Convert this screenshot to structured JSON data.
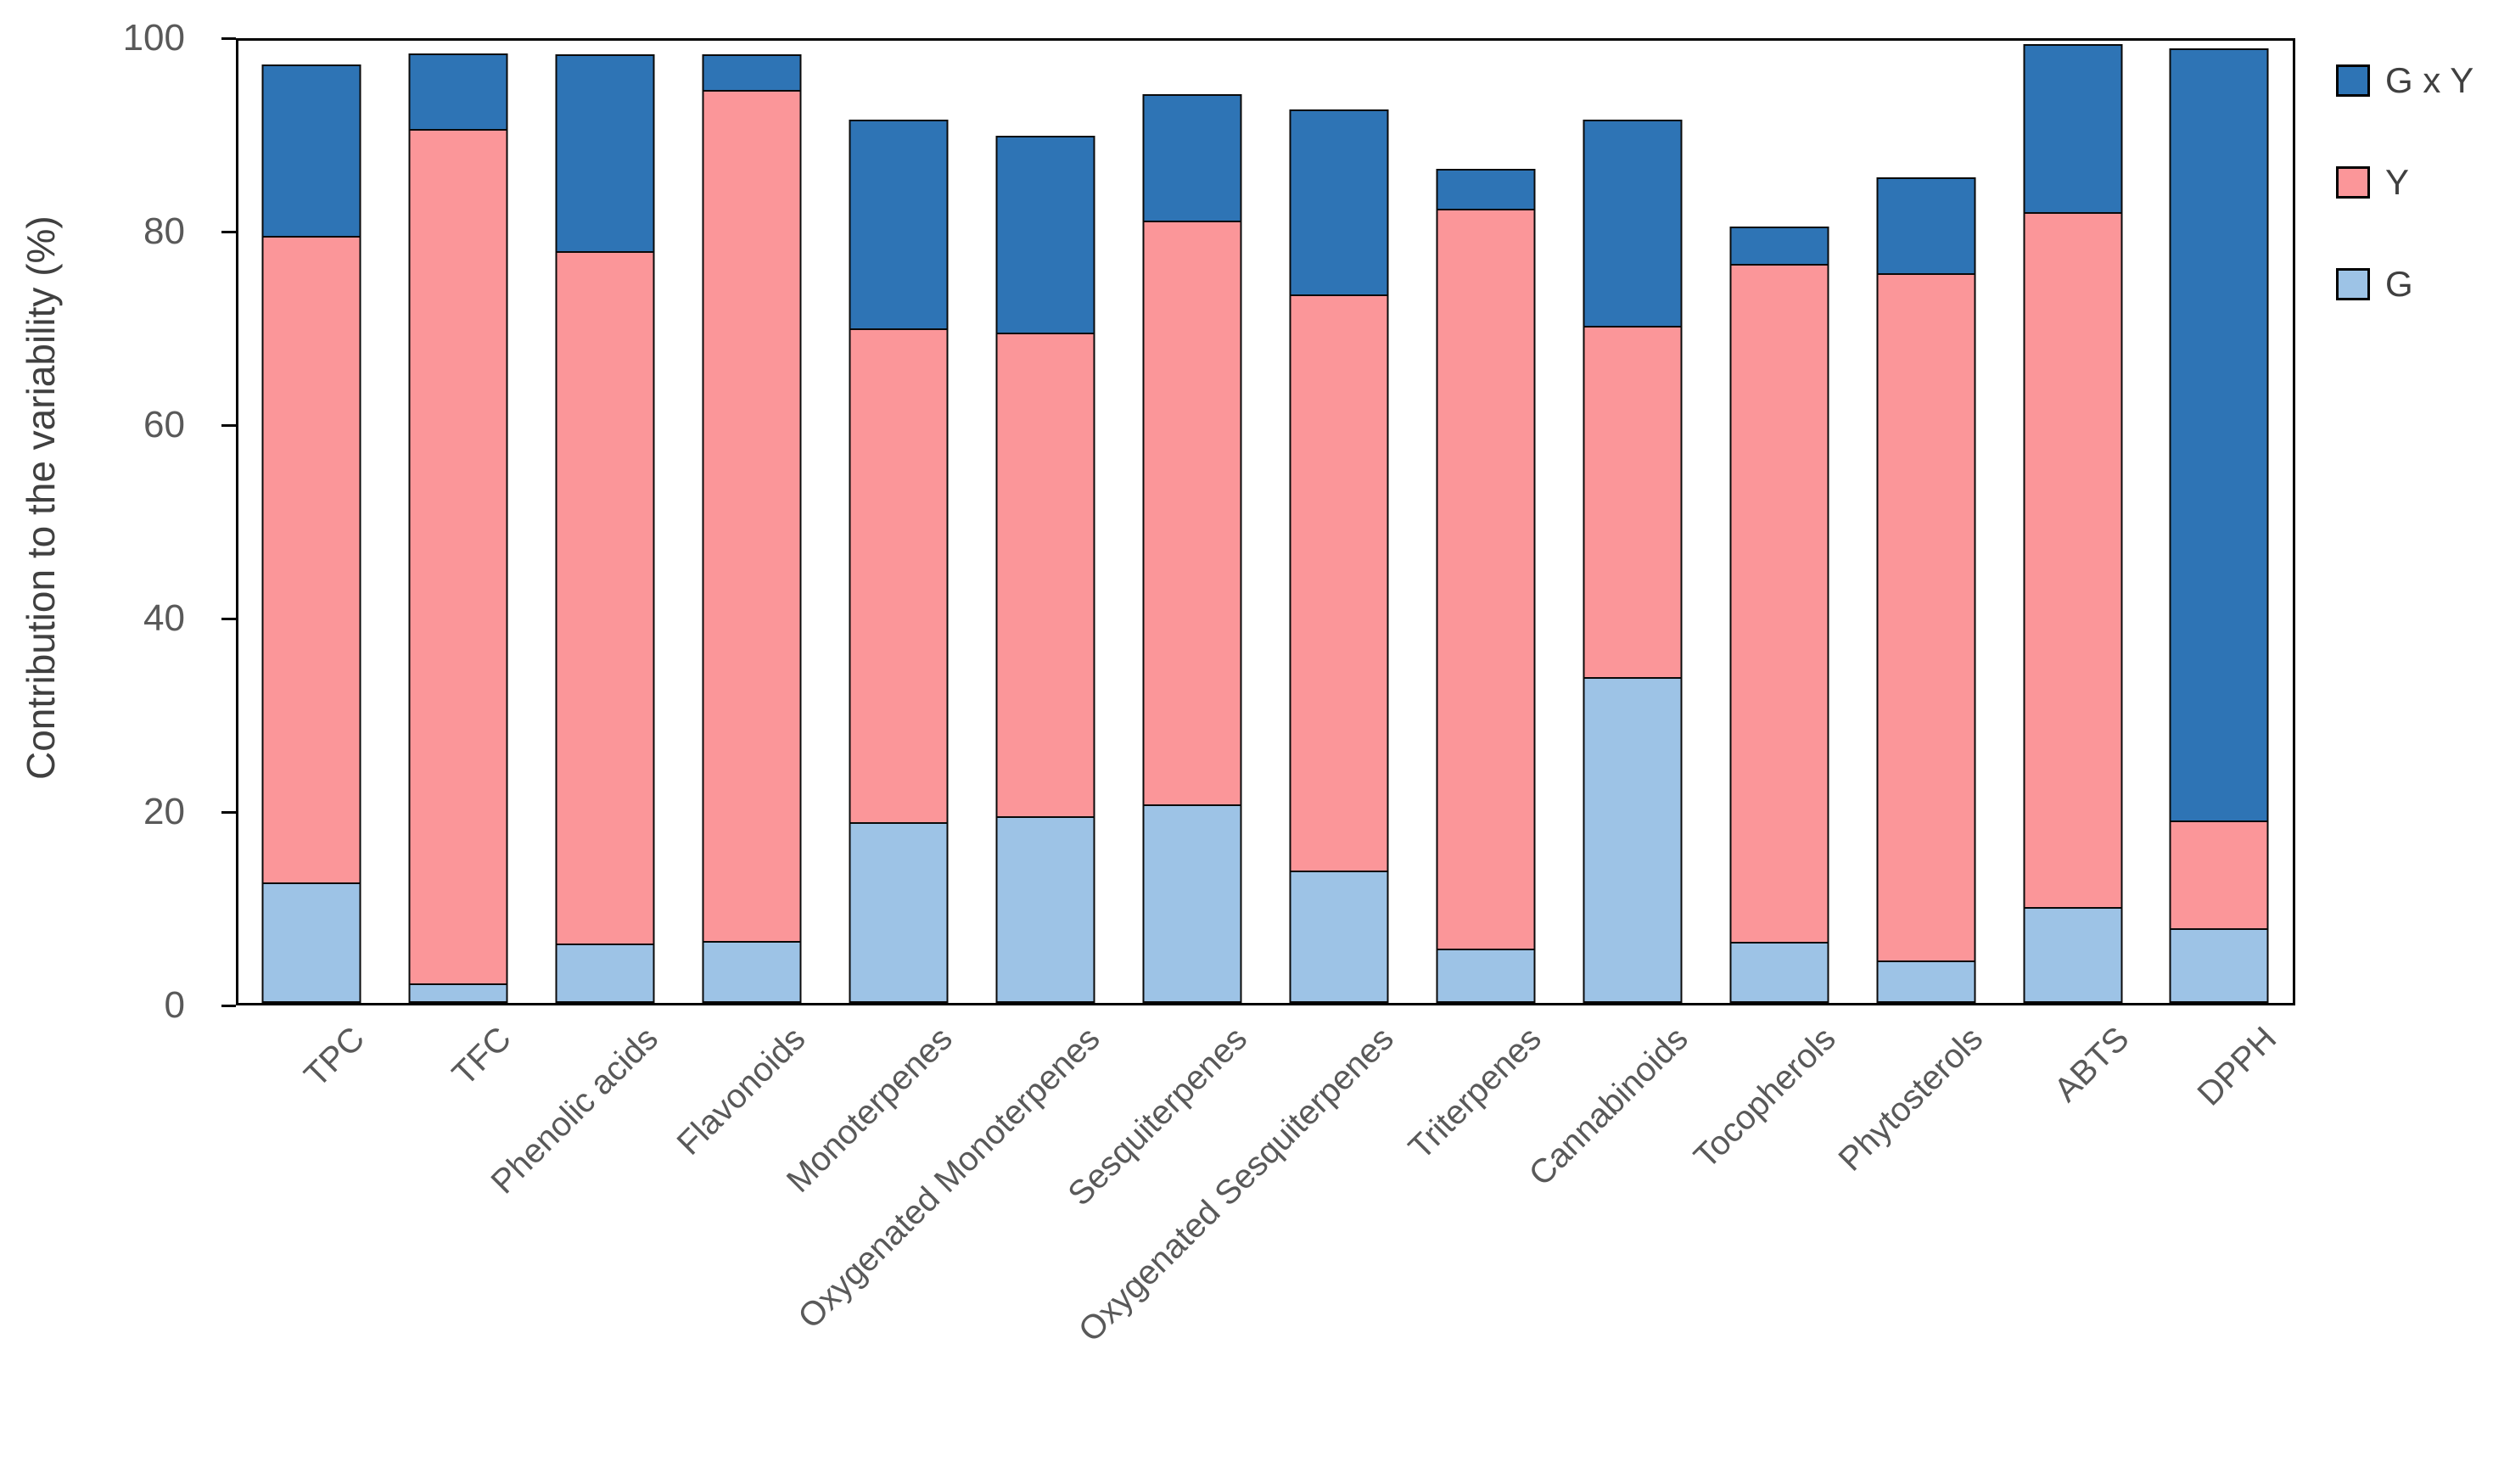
{
  "y_axis": {
    "title": "Contribution to the variability (%)",
    "ticks": [
      0,
      20,
      40,
      60,
      80,
      100
    ],
    "min": 0,
    "max": 100
  },
  "legend": [
    {
      "label": "G x Y",
      "color": "#2E74B5"
    },
    {
      "label": "Y",
      "color": "#FB9699"
    },
    {
      "label": "G",
      "color": "#9DC3E6"
    }
  ],
  "colors": {
    "gxy_blue": "#2E74B5",
    "y_pink": "#FB9699",
    "g_lightblue": "#9DC3E6",
    "bar_border": "#0a0a0a",
    "axis_black": "#000000",
    "tick_text": "#595959",
    "axis_title_text": "#404040"
  },
  "chart_data": {
    "type": "bar",
    "stacked": true,
    "title": "",
    "xlabel": "",
    "ylabel": "Contribution to the variability (%)",
    "ylim": [
      0,
      100
    ],
    "grid": false,
    "legend_position": "right",
    "categories": [
      "TPC",
      "TFC",
      "Phenolic acids",
      "Flavonoids",
      "Monoterpenes",
      "Oxygenated Monoterpenes",
      "Sesquiterpenes",
      "Oxygenated Sesquiterpenes",
      "Triterpenes",
      "Cannabinoids",
      "Tocopherols",
      "Phytosterols",
      "ABTS",
      "DPPH"
    ],
    "series": [
      {
        "name": "G",
        "color": "#9DC3E6",
        "values": [
          12.5,
          2.0,
          6.1,
          6.4,
          18.7,
          19.3,
          20.5,
          13.7,
          5.6,
          33.7,
          6.3,
          4.4,
          9.9,
          7.7
        ]
      },
      {
        "name": "Y",
        "color": "#FB9699",
        "values": [
          67.0,
          88.6,
          71.8,
          88.2,
          51.3,
          50.2,
          60.6,
          59.8,
          76.7,
          36.5,
          70.3,
          71.3,
          72.1,
          11.4
        ]
      },
      {
        "name": "G x Y",
        "color": "#2E74B5",
        "values": [
          18.0,
          8.0,
          20.6,
          3.9,
          21.8,
          20.6,
          13.3,
          19.3,
          4.4,
          21.6,
          4.1,
          10.1,
          17.6,
          80.0
        ]
      }
    ],
    "stack_totals": [
      97.5,
      98.6,
      98.5,
      98.5,
      91.8,
      90.1,
      94.4,
      92.8,
      86.7,
      91.8,
      80.7,
      85.8,
      99.6,
      99.1
    ]
  }
}
